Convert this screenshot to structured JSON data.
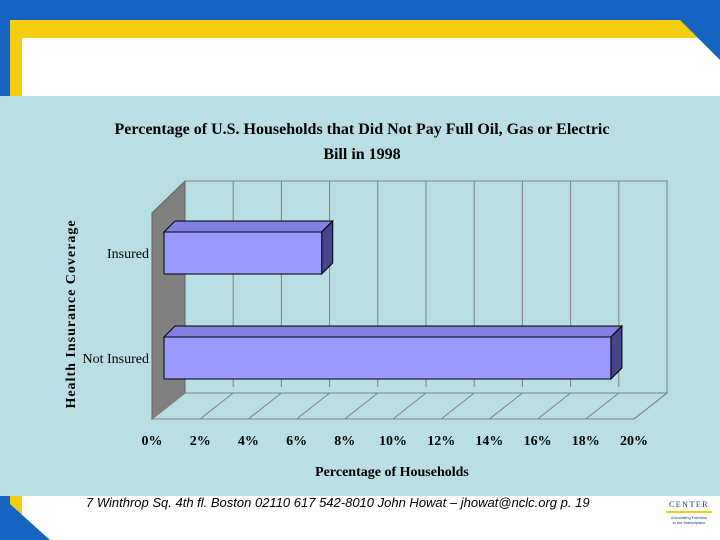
{
  "slide": {
    "footer": "7 Winthrop Sq. 4th fl. Boston 02110  617 542-8010  John Howat – jhowat@nclc.org  p. 19",
    "logo_text": "CENTER",
    "logo_subtext_1": "Advocating Fairness",
    "logo_subtext_2": "in the Marketplace"
  },
  "colors": {
    "frame_blue": "#1565c0",
    "accent_yellow": "#f5cc12",
    "panel_bg": "#b9dfe4",
    "bar_fill": "#9999ff",
    "bar_top": "#8080e0",
    "bar_side": "#454588",
    "wall": "#808080"
  },
  "chart_data": {
    "type": "bar",
    "orientation": "horizontal",
    "style": "3d",
    "title_line1": "Percentage of U.S. Households that Did Not Pay Full Oil, Gas or Electric",
    "title_line2": "Bill in 1998",
    "xlabel": "Percentage of Households",
    "ylabel": "Health Insurance Coverage",
    "categories": [
      "Insured",
      "Not Insured"
    ],
    "values": [
      7,
      19
    ],
    "unit": "%",
    "xlim": [
      0,
      20
    ],
    "xticks": [
      "0%",
      "2%",
      "4%",
      "6%",
      "8%",
      "10%",
      "12%",
      "14%",
      "16%",
      "18%",
      "20%"
    ],
    "grid": true,
    "legend": "none"
  }
}
